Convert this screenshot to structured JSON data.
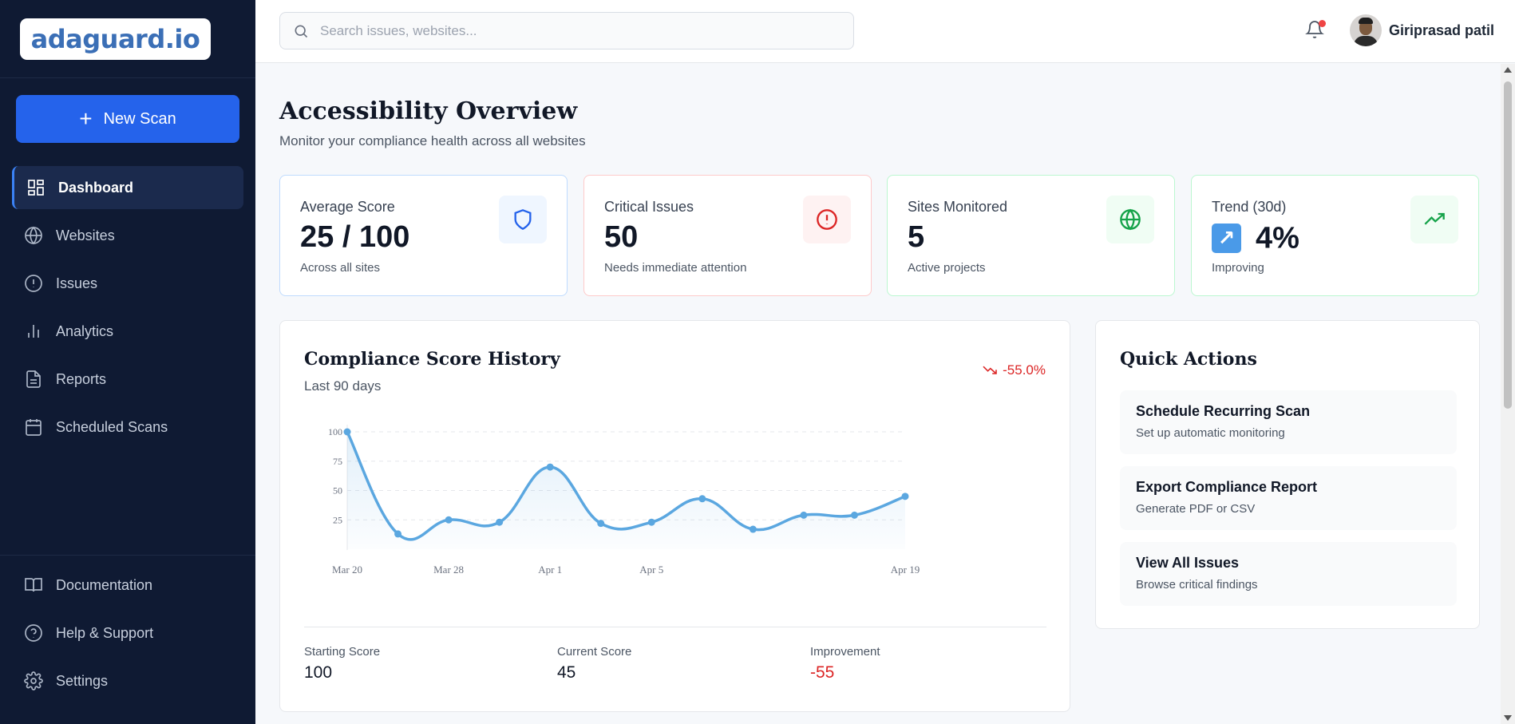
{
  "app": {
    "logo_text": "adaguard.io",
    "new_scan_label": "New Scan"
  },
  "sidebar": {
    "items": [
      {
        "label": "Dashboard",
        "icon": "dashboard-icon",
        "active": true
      },
      {
        "label": "Websites",
        "icon": "globe-icon",
        "active": false
      },
      {
        "label": "Issues",
        "icon": "alert-circle-icon",
        "active": false
      },
      {
        "label": "Analytics",
        "icon": "bar-chart-icon",
        "active": false
      },
      {
        "label": "Reports",
        "icon": "file-text-icon",
        "active": false
      },
      {
        "label": "Scheduled Scans",
        "icon": "calendar-icon",
        "active": false
      }
    ],
    "bottom_items": [
      {
        "label": "Documentation",
        "icon": "book-icon"
      },
      {
        "label": "Help & Support",
        "icon": "help-circle-icon"
      },
      {
        "label": "Settings",
        "icon": "gear-icon"
      }
    ]
  },
  "header": {
    "search_placeholder": "Search issues, websites...",
    "user_name": "Giriprasad patil",
    "has_notification": true
  },
  "page": {
    "title": "Accessibility Overview",
    "subtitle": "Monitor your compliance health across all websites"
  },
  "cards": [
    {
      "label": "Average Score",
      "value": "25 / 100",
      "sub": "Across all sites",
      "icon": "shield-icon",
      "accent": "#2563eb",
      "border": "#bfdbfe",
      "icon_bg": "#eff6ff"
    },
    {
      "label": "Critical Issues",
      "value": "50",
      "sub": "Needs immediate attention",
      "icon": "alert-circle-icon",
      "accent": "#dc2626",
      "border": "#fecaca",
      "icon_bg": "#fef2f2"
    },
    {
      "label": "Sites Monitored",
      "value": "5",
      "sub": "Active projects",
      "icon": "globe-icon",
      "accent": "#16a34a",
      "border": "#bbf7d0",
      "icon_bg": "#f0fdf4"
    },
    {
      "label": "Trend (30d)",
      "value": "4%",
      "sub": "Improving",
      "icon": "trending-up-icon",
      "accent": "#16a34a",
      "border": "#bbf7d0",
      "icon_bg": "#f0fdf4"
    }
  ],
  "chart_panel": {
    "title": "Compliance Score History",
    "subtitle": "Last 90 days",
    "change": "-55.0%",
    "stats": [
      {
        "label": "Starting Score",
        "value": "100"
      },
      {
        "label": "Current Score",
        "value": "45"
      },
      {
        "label": "Improvement",
        "value": "-55"
      }
    ]
  },
  "chart_data": {
    "type": "area",
    "x_ticks": [
      "Mar 20",
      "Mar 28",
      "Apr 1",
      "Apr 5",
      "Apr 19"
    ],
    "y_ticks": [
      25,
      50,
      75,
      100
    ],
    "ylim": [
      0,
      100
    ],
    "grid": true,
    "color": "#5ba7e0",
    "series": [
      {
        "values": [
          100,
          13,
          25,
          23,
          70,
          22,
          23,
          43,
          17,
          29,
          29,
          45
        ]
      }
    ]
  },
  "quick_actions": {
    "title": "Quick Actions",
    "items": [
      {
        "name": "Schedule Recurring Scan",
        "desc": "Set up automatic monitoring"
      },
      {
        "name": "Export Compliance Report",
        "desc": "Generate PDF or CSV"
      },
      {
        "name": "View All Issues",
        "desc": "Browse critical findings"
      }
    ]
  }
}
